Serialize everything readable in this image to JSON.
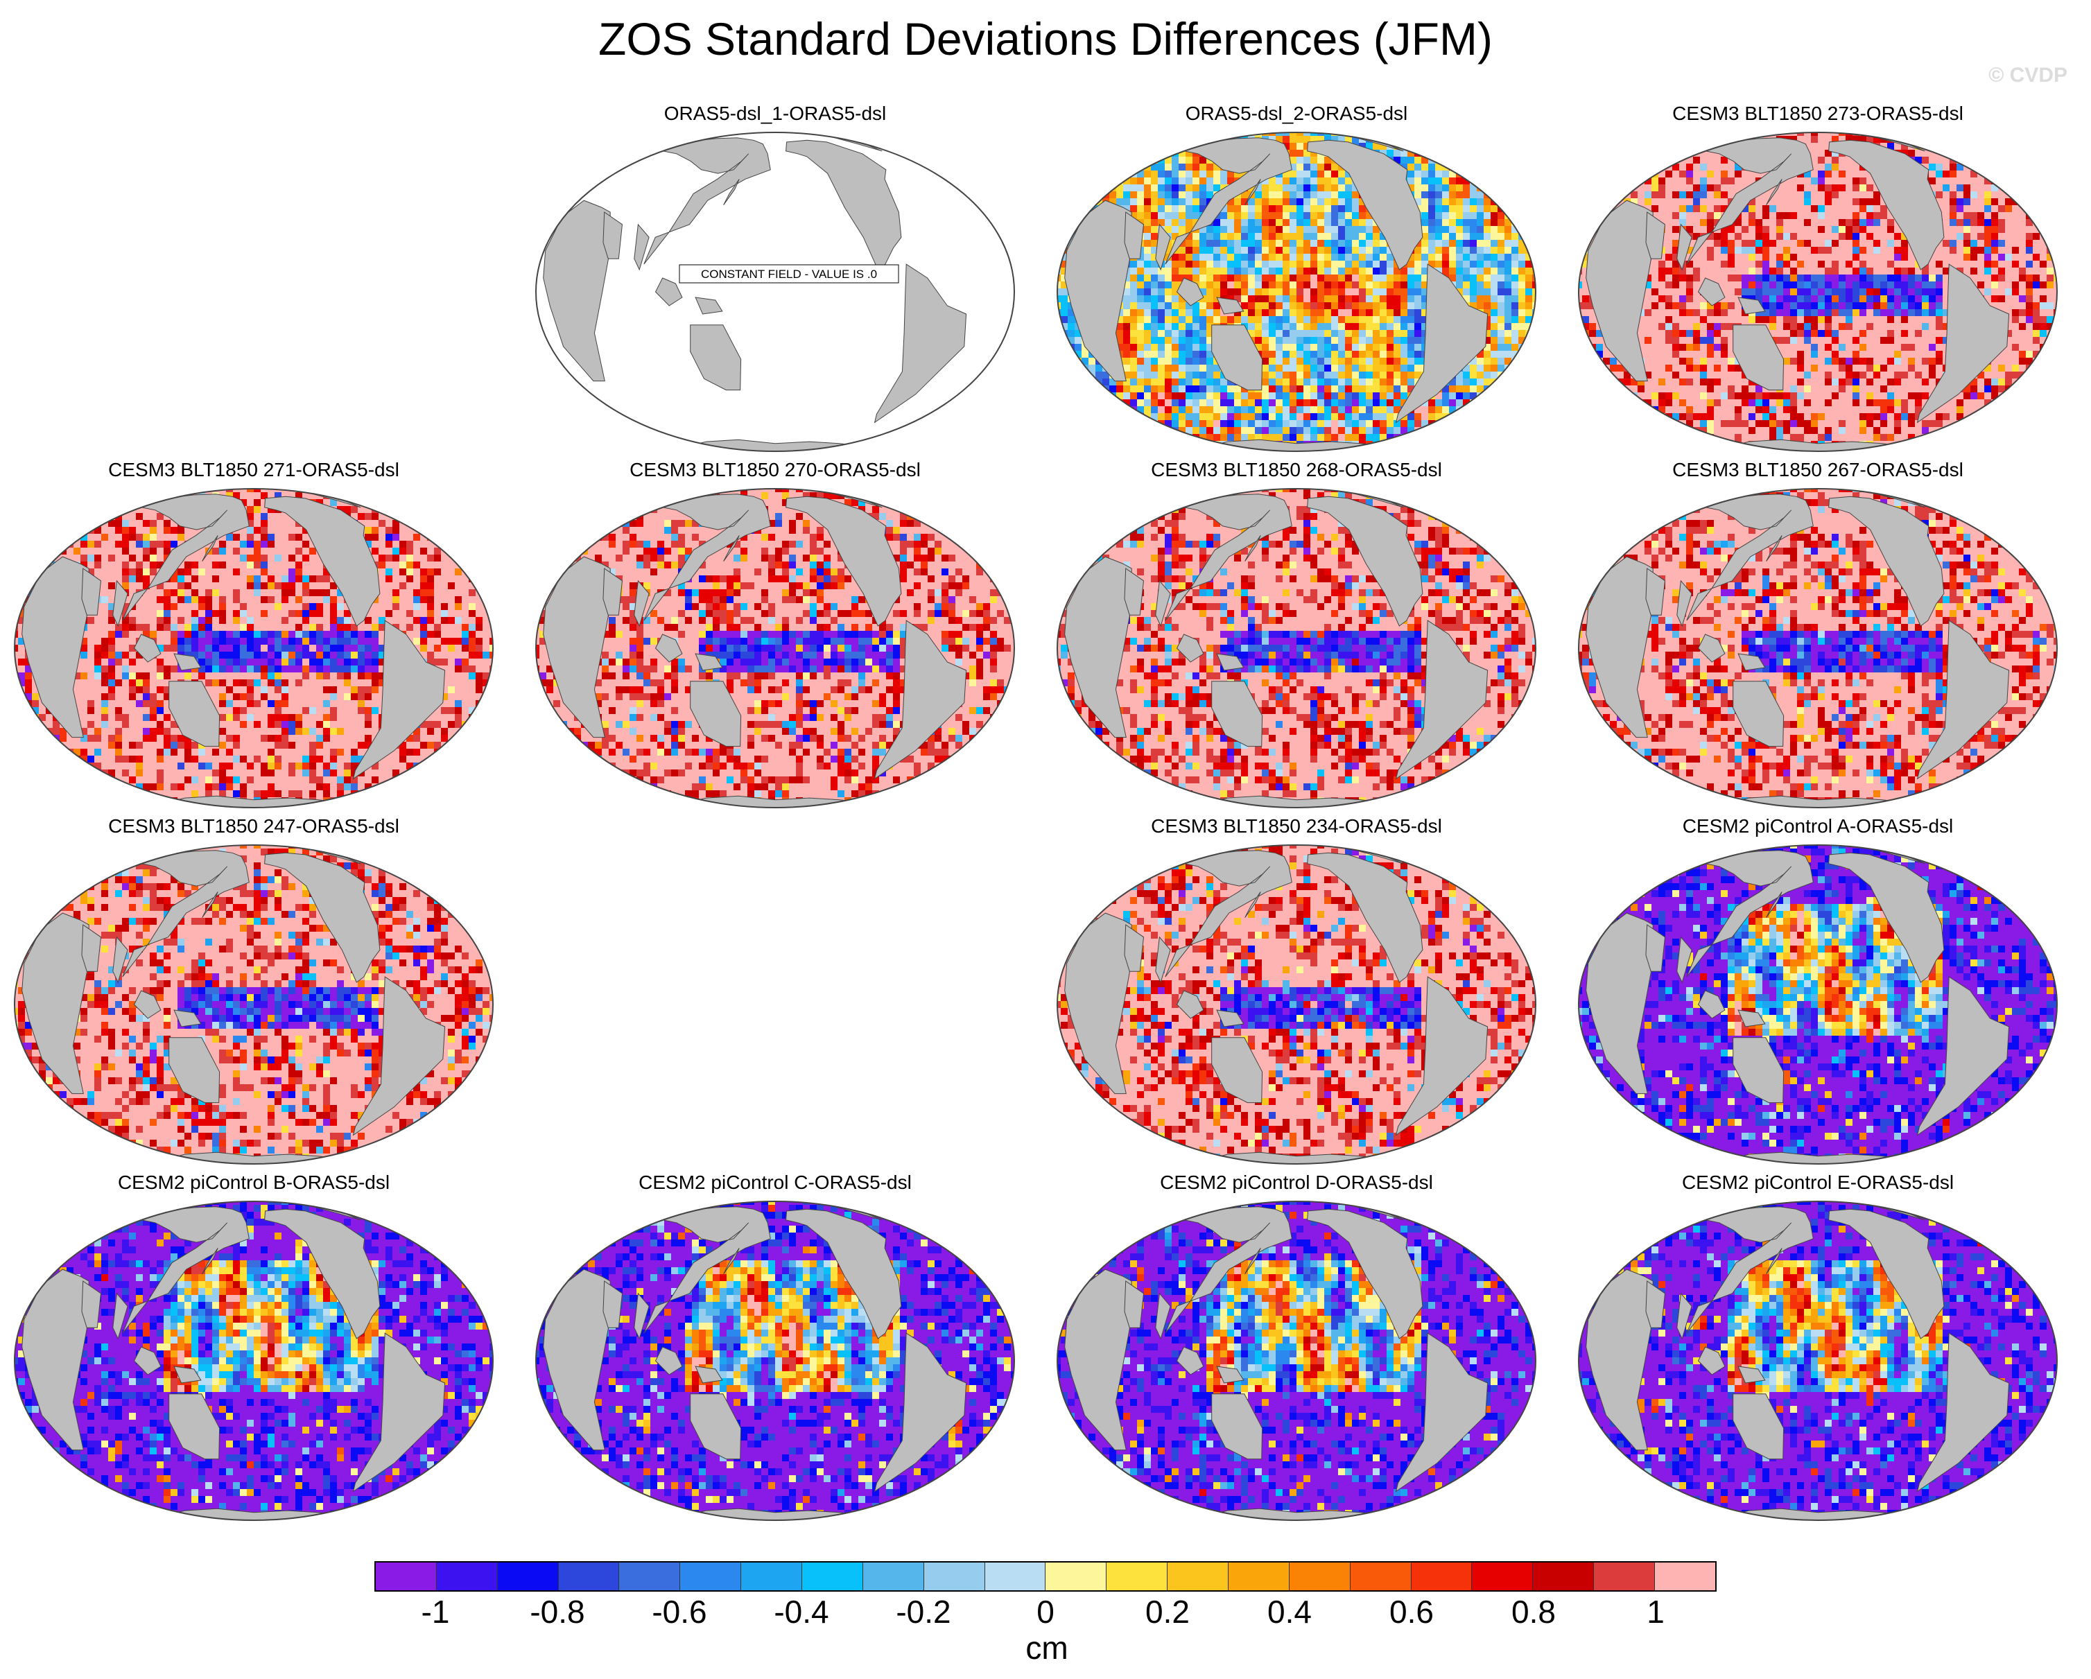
{
  "title": "ZOS Standard Deviations Differences (JFM)",
  "watermark": "© CVDP",
  "colors": {
    "land": "#bebebe",
    "ocean_blank": "#ffffff",
    "outline": "#444444"
  },
  "panels": [
    {
      "title": "ORAS5-dsl_1-ORAS5-dsl",
      "pattern": "constant",
      "constant_label": "CONSTANT FIELD - VALUE IS .0"
    },
    {
      "title": "ORAS5-dsl_2-ORAS5-dsl",
      "pattern": "mixed"
    },
    {
      "title": "CESM3 BLT1850 273-ORAS5-dsl",
      "pattern": "positive"
    },
    {
      "title": "CESM3 BLT1850 271-ORAS5-dsl",
      "pattern": "positive"
    },
    {
      "title": "CESM3 BLT1850 270-ORAS5-dsl",
      "pattern": "positive"
    },
    {
      "title": "CESM3 BLT1850 268-ORAS5-dsl",
      "pattern": "positive"
    },
    {
      "title": "CESM3 BLT1850 267-ORAS5-dsl",
      "pattern": "positive"
    },
    {
      "title": "CESM3 BLT1850 247-ORAS5-dsl",
      "pattern": "positive"
    },
    {
      "title": "CESM3 BLT1850 234-ORAS5-dsl",
      "pattern": "positive"
    },
    {
      "title": "CESM2 piControl A-ORAS5-dsl",
      "pattern": "negative"
    },
    {
      "title": "CESM2 piControl B-ORAS5-dsl",
      "pattern": "negative"
    },
    {
      "title": "CESM2 piControl C-ORAS5-dsl",
      "pattern": "negative"
    },
    {
      "title": "CESM2 piControl D-ORAS5-dsl",
      "pattern": "negative"
    },
    {
      "title": "CESM2 piControl E-ORAS5-dsl",
      "pattern": "negative"
    }
  ],
  "colorbar": {
    "unit": "cm",
    "tick_labels": [
      "-1",
      "-0.8",
      "-0.6",
      "-0.4",
      "-0.2",
      "0",
      "0.2",
      "0.4",
      "0.6",
      "0.8",
      "1"
    ],
    "colors": [
      "#8a1ae6",
      "#3c12f0",
      "#0a0af5",
      "#2d46dc",
      "#3a6ede",
      "#2a88ee",
      "#1ea5f2",
      "#08c0fa",
      "#55b6ec",
      "#96cdee",
      "#b9def4",
      "#fdf69a",
      "#fde13c",
      "#fbc51e",
      "#faa50a",
      "#fa8205",
      "#f85a0a",
      "#f5320a",
      "#e60000",
      "#c80000",
      "#dc3c3c",
      "#ffb4b4"
    ]
  }
}
